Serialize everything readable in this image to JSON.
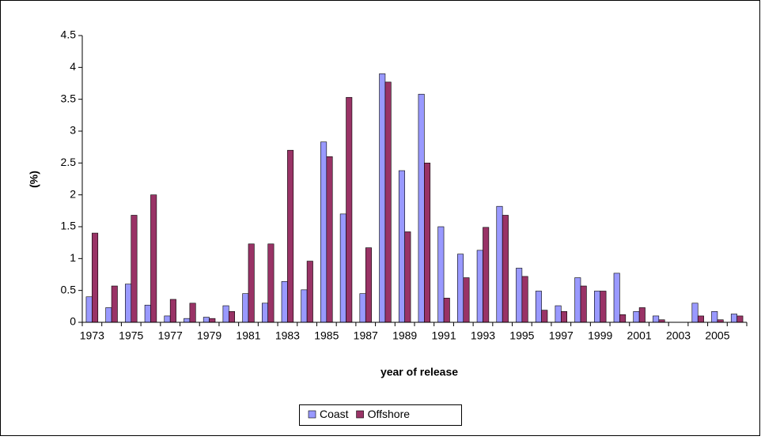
{
  "chart_data": {
    "type": "bar",
    "xlabel": "year of release",
    "ylabel": "(%)",
    "categories": [
      "1973",
      null,
      "1975",
      null,
      "1977",
      null,
      "1979",
      null,
      "1981",
      null,
      "1983",
      null,
      "1985",
      null,
      "1987",
      null,
      "1989",
      null,
      "1991",
      null,
      "1993",
      null,
      "1995",
      null,
      "1997",
      null,
      "1999",
      null,
      "2001",
      null,
      "2003",
      null,
      "2005",
      null
    ],
    "series": [
      {
        "name": "Coast",
        "color": "#9999ff",
        "values": [
          0.4,
          0.23,
          0.6,
          0.27,
          0.1,
          0.06,
          0.08,
          0.26,
          0.45,
          0.3,
          0.64,
          0.51,
          2.83,
          1.7,
          0.45,
          3.9,
          2.38,
          3.58,
          1.5,
          1.07,
          1.13,
          1.82,
          0.85,
          0.49,
          0.26,
          0.7,
          0.49,
          0.77,
          0.17,
          0.1,
          0,
          0.3,
          0.17,
          0.13
        ]
      },
      {
        "name": "Offshore",
        "color": "#993366",
        "values": [
          1.4,
          0.57,
          1.68,
          2.0,
          0.36,
          0.3,
          0.06,
          0.17,
          1.23,
          1.23,
          2.7,
          0.96,
          2.6,
          3.53,
          1.17,
          3.77,
          1.42,
          2.5,
          0.38,
          0.7,
          1.49,
          1.68,
          0.72,
          0.19,
          0.17,
          0.57,
          0.49,
          0.12,
          0.23,
          0.04,
          0,
          0.1,
          0.04,
          0.1
        ]
      }
    ],
    "ylim": [
      0,
      4.5
    ],
    "yticks": [
      0,
      0.5,
      1,
      1.5,
      2,
      2.5,
      3,
      3.5,
      4,
      4.5
    ],
    "legend": "bottom",
    "grid": false
  }
}
